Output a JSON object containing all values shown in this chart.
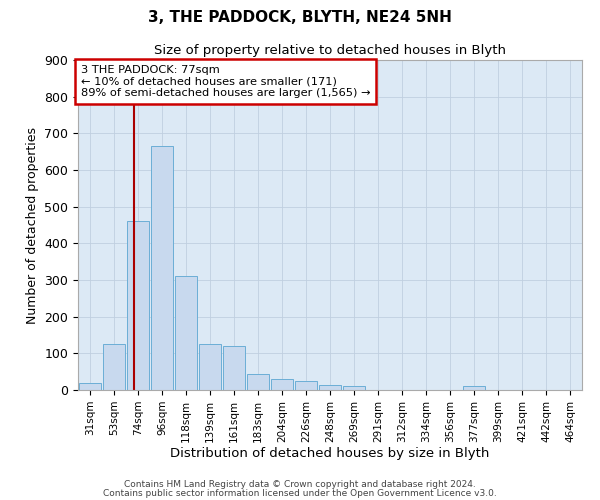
{
  "title": "3, THE PADDOCK, BLYTH, NE24 5NH",
  "subtitle": "Size of property relative to detached houses in Blyth",
  "xlabel": "Distribution of detached houses by size in Blyth",
  "ylabel": "Number of detached properties",
  "bin_labels": [
    "31sqm",
    "53sqm",
    "74sqm",
    "96sqm",
    "118sqm",
    "139sqm",
    "161sqm",
    "183sqm",
    "204sqm",
    "226sqm",
    "248sqm",
    "269sqm",
    "291sqm",
    "312sqm",
    "334sqm",
    "356sqm",
    "377sqm",
    "399sqm",
    "421sqm",
    "442sqm",
    "464sqm"
  ],
  "bar_values": [
    20,
    125,
    460,
    665,
    310,
    125,
    120,
    45,
    30,
    25,
    15,
    10,
    0,
    0,
    0,
    0,
    10,
    0,
    0,
    0,
    0
  ],
  "bar_color": "#c8d9ee",
  "bar_edge_color": "#6baed6",
  "vline_x": 1.85,
  "vline_color": "#aa0000",
  "ylim": [
    0,
    900
  ],
  "yticks": [
    0,
    100,
    200,
    300,
    400,
    500,
    600,
    700,
    800,
    900
  ],
  "annotation_text": "3 THE PADDOCK: 77sqm\n← 10% of detached houses are smaller (171)\n89% of semi-detached houses are larger (1,565) →",
  "annotation_box_color": "#cc0000",
  "footer_line1": "Contains HM Land Registry data © Crown copyright and database right 2024.",
  "footer_line2": "Contains public sector information licensed under the Open Government Licence v3.0.",
  "bg_color": "#ffffff",
  "plot_bg_color": "#dce9f5",
  "grid_color": "#c0cfe0"
}
